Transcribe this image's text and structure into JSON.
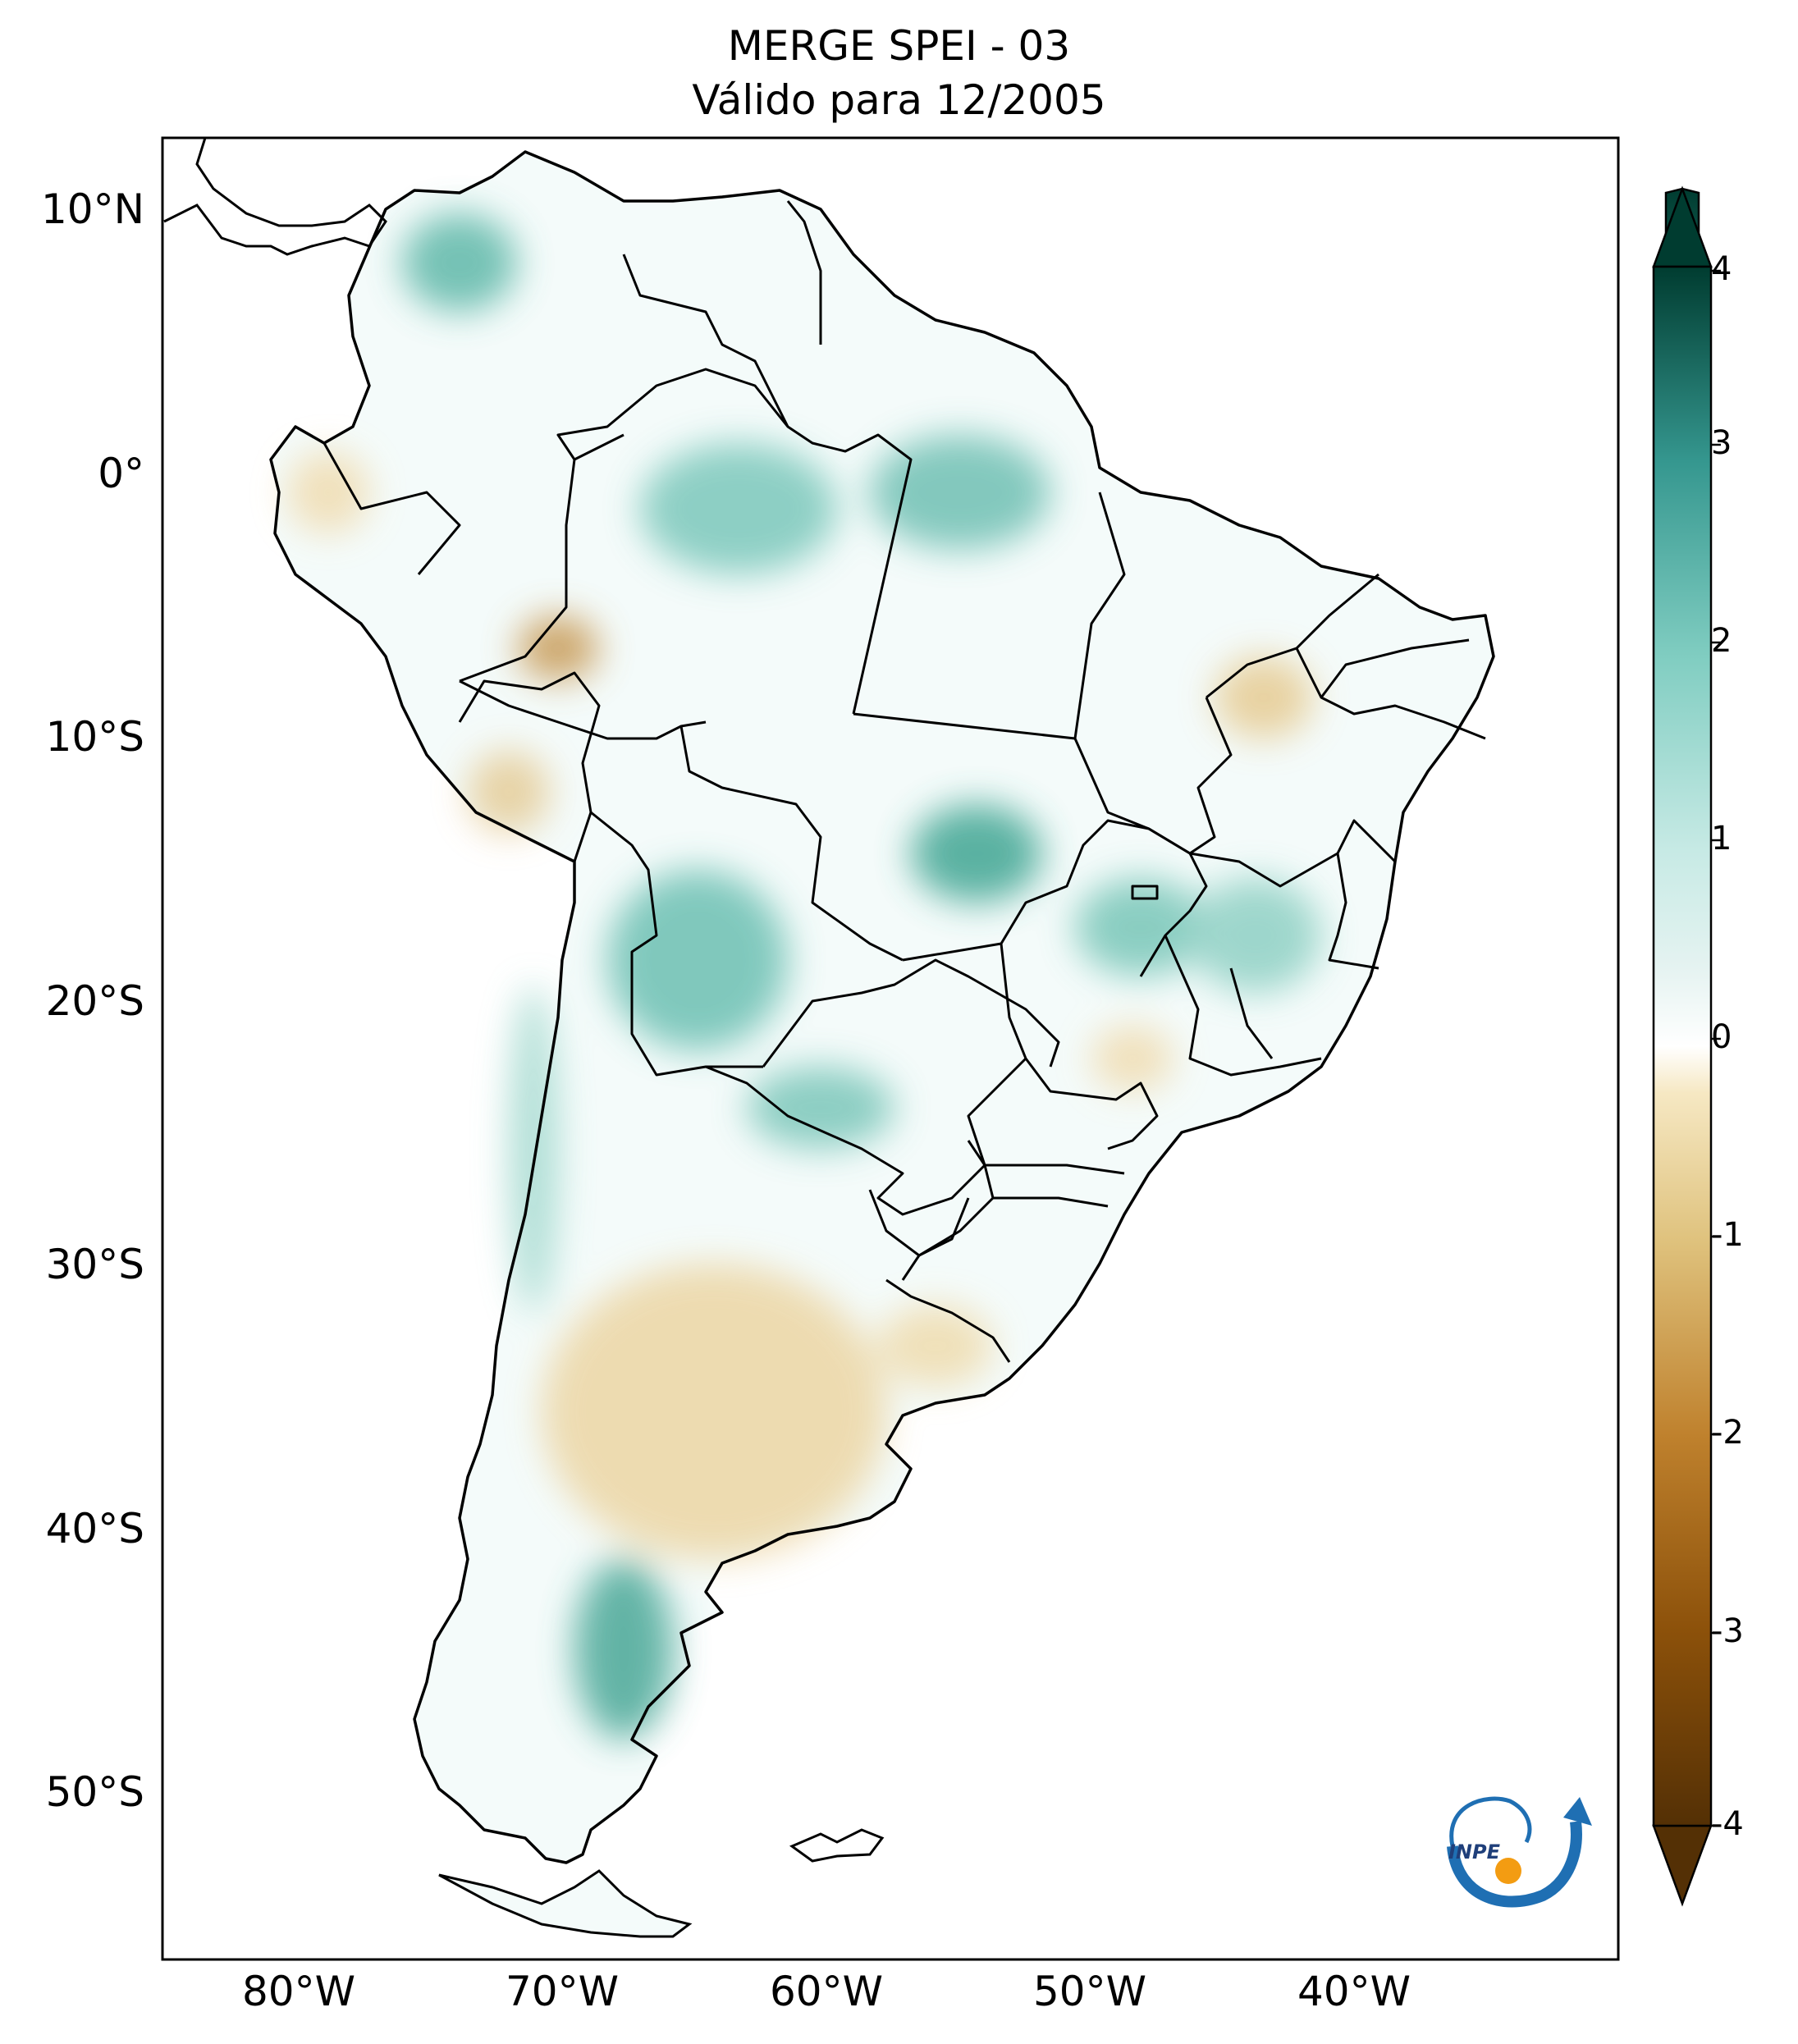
{
  "title": {
    "line1": "MERGE   SPEI - 03",
    "line2": "Válido para 12/2005"
  },
  "axes": {
    "lat_labels": [
      "10°N",
      "0°",
      "10°S",
      "20°S",
      "30°S",
      "40°S",
      "50°S"
    ],
    "lon_labels": [
      "80°W",
      "70°W",
      "60°W",
      "50°W",
      "40°W"
    ]
  },
  "colorbar": {
    "labels": [
      "4",
      "3",
      "2",
      "1",
      "0",
      "-1",
      "-2",
      "-3",
      "-4"
    ],
    "min": -4,
    "max": 4,
    "colors": {
      "dark_green": "#003c30",
      "teal": "#35978f",
      "light_teal": "#c7eae5",
      "white": "#f7f7f7",
      "light_tan": "#f6e8c3",
      "tan": "#dfc27d",
      "brown": "#bf812d",
      "dark_brown": "#543005"
    }
  },
  "logo": {
    "text": "INPE",
    "accent_color": "#1f6fb3",
    "sun_color": "#f39c12"
  }
}
